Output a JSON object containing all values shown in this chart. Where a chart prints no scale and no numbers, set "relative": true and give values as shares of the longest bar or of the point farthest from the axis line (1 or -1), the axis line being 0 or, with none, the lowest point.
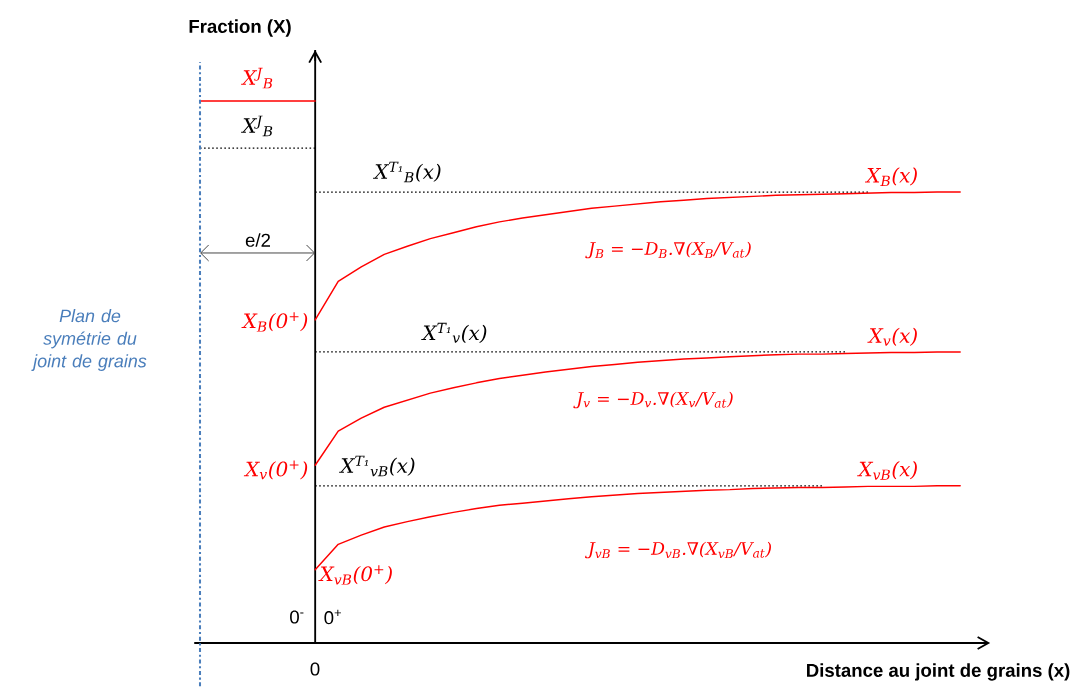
{
  "chart_data": {
    "type": "line",
    "relative": true,
    "marker": "none",
    "ylabel": "Fraction (X)",
    "xlabel": "Distance au joint de grains (x)",
    "categories": [
      null,
      null,
      null,
      null,
      null,
      null,
      null,
      null,
      null,
      null,
      null,
      null,
      null,
      null,
      null,
      null,
      null,
      null,
      null,
      null,
      null,
      null,
      null,
      null,
      null,
      null,
      null,
      null,
      null,
      null,
      null,
      null,
      null,
      null
    ],
    "series": [
      {
        "color": "#ff0000",
        "values": [
          1,
          1,
          1,
          1,
          1,
          1,
          null,
          null,
          null,
          null,
          null,
          null,
          null,
          null,
          null,
          null,
          null,
          null,
          null,
          null,
          null,
          null,
          null,
          null,
          null,
          null,
          null,
          null,
          null,
          null,
          null,
          null,
          null,
          null
        ]
      },
      {
        "color": "#000000",
        "line_style": "dotted",
        "values": [
          0.913,
          0.913,
          0.913,
          0.913,
          0.913,
          0.913,
          null,
          null,
          null,
          null,
          null,
          null,
          null,
          null,
          null,
          null,
          null,
          null,
          null,
          null,
          null,
          null,
          null,
          null,
          null,
          null,
          null,
          null,
          null,
          null,
          null,
          null,
          null,
          null
        ]
      },
      {
        "color": "#000000",
        "line_style": "dotted",
        "values": [
          null,
          null,
          null,
          null,
          null,
          0.832,
          0.832,
          0.832,
          0.832,
          0.832,
          0.832,
          0.832,
          0.832,
          0.832,
          0.832,
          0.832,
          0.832,
          0.832,
          0.832,
          0.832,
          0.832,
          0.832,
          0.832,
          0.832,
          0.832,
          0.832,
          0.832,
          0.832,
          0.832,
          0.832,
          null,
          null,
          null,
          null
        ]
      },
      {
        "color": "#000000",
        "line_style": "dotted",
        "values": [
          null,
          null,
          null,
          null,
          null,
          0.537,
          0.537,
          0.537,
          0.537,
          0.537,
          0.537,
          0.537,
          0.537,
          0.537,
          0.537,
          0.537,
          0.537,
          0.537,
          0.537,
          0.537,
          0.537,
          0.537,
          0.537,
          0.537,
          0.537,
          0.537,
          0.537,
          0.537,
          0.537,
          null,
          null,
          null,
          null,
          null
        ]
      },
      {
        "color": "#000000",
        "line_style": "dotted",
        "values": [
          null,
          null,
          null,
          null,
          null,
          0.29,
          0.29,
          0.29,
          0.29,
          0.29,
          0.29,
          0.29,
          0.29,
          0.29,
          0.29,
          0.29,
          0.29,
          0.29,
          0.29,
          0.29,
          0.29,
          0.29,
          0.29,
          0.29,
          0.29,
          0.29,
          0.29,
          0.29,
          null,
          null,
          null,
          null,
          null,
          null
        ]
      },
      {
        "name": "X$_{B}$(x)",
        "color": "#ff0000",
        "values": [
          null,
          null,
          null,
          null,
          null,
          0.596,
          0.667,
          0.694,
          0.717,
          0.732,
          0.746,
          0.757,
          0.768,
          0.777,
          0.784,
          0.79,
          0.796,
          0.802,
          0.806,
          0.81,
          0.814,
          0.817,
          0.82,
          0.822,
          0.824,
          0.826,
          0.827,
          0.828,
          0.829,
          0.83,
          0.831,
          0.831,
          0.832,
          0.832
        ]
      },
      {
        "name": "X$_{v}$(x)",
        "color": "#ff0000",
        "values": [
          null,
          null,
          null,
          null,
          null,
          0.328,
          0.391,
          0.415,
          0.435,
          0.448,
          0.461,
          0.471,
          0.48,
          0.488,
          0.494,
          0.5,
          0.505,
          0.51,
          0.514,
          0.518,
          0.521,
          0.524,
          0.526,
          0.528,
          0.53,
          0.532,
          0.533,
          0.533,
          0.534,
          0.535,
          0.536,
          0.536,
          0.537,
          0.537
        ]
      },
      {
        "name": "X$_{vB}$(x)",
        "color": "#ff0000",
        "values": [
          null,
          null,
          null,
          null,
          null,
          0.135,
          0.182,
          0.199,
          0.214,
          0.224,
          0.233,
          0.241,
          0.248,
          0.254,
          0.258,
          0.262,
          0.266,
          0.27,
          0.273,
          0.276,
          0.278,
          0.28,
          0.282,
          0.283,
          0.285,
          0.286,
          0.287,
          0.287,
          0.288,
          0.289,
          0.289,
          0.289,
          0.29,
          0.29
        ]
      }
    ],
    "annotations": [
      "Plan de symétrie du joint de grains",
      "e/2",
      "0$^{-}$",
      "0$^{+}$",
      "0",
      "X$^{J}$$_{B}$",
      "X$^{J}$$_{B}$",
      "X$^{T₁}$$_{B}$(x)",
      "X$^{T₁}$$_{v}$(x)",
      "X$^{T₁}$$_{vB}$(x)",
      "X$_{B}$(0$^{+}$)",
      "X$_{v}$(0$^{+}$)",
      "X$_{vB}$(0$^{+}$)",
      "J$_{B}$ = −D$_{B}$.∇(X$_{B}$/V$_{at}$)",
      "J$_{v}$ = −D$_{v}$.∇(X$_{v}$/V$_{at}$)",
      "J$_{vB}$ = −D$_{vB}$.∇(X$_{vB}$/V$_{at}$)"
    ]
  }
}
